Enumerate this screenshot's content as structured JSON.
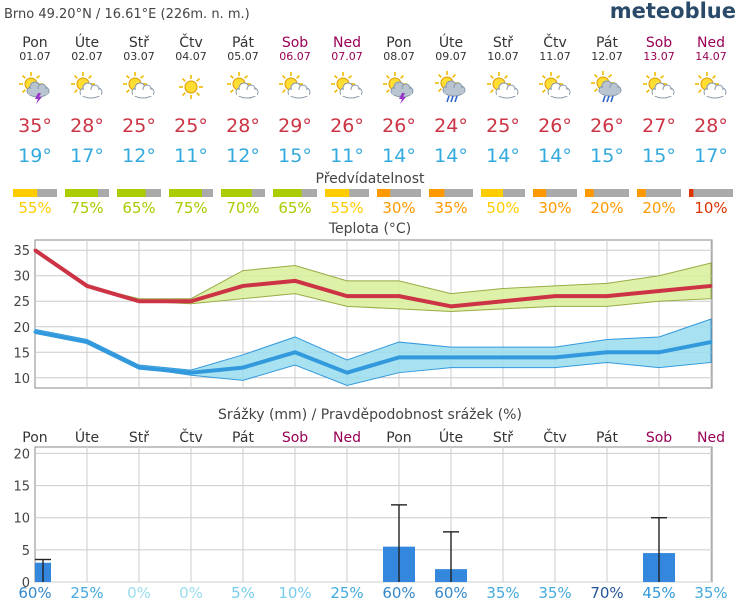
{
  "header": {
    "location": "Brno  49.20°N / 16.61°E (226m. n. m.)",
    "brand": "meteoblue"
  },
  "colors": {
    "weekday": "#333333",
    "weekend": "#990055",
    "max_temp": "#cc3344",
    "min_temp": "#33aadd",
    "max_line": "#cc3344",
    "max_band": "#d8ee99",
    "max_band_edge": "#99aa44",
    "min_line": "#3399dd",
    "min_band": "#99ddee",
    "min_band_edge": "#3399dd",
    "precip_bar": "#3388dd",
    "grid": "#888888"
  },
  "days": [
    {
      "name": "Pon",
      "date": "01.07",
      "weekend": false,
      "icon": "sun-thunder-icon",
      "tmax": "35°",
      "tmin": "19°",
      "pred": "55%",
      "pred_color": "#ffcc00",
      "pred_level": 0.55
    },
    {
      "name": "Úte",
      "date": "02.07",
      "weekend": false,
      "icon": "sun-cloud-icon",
      "tmax": "28°",
      "tmin": "17°",
      "pred": "75%",
      "pred_color": "#aacc00",
      "pred_level": 0.75
    },
    {
      "name": "Stř",
      "date": "03.07",
      "weekend": false,
      "icon": "sun-cloud-icon",
      "tmax": "25°",
      "tmin": "12°",
      "pred": "65%",
      "pred_color": "#aacc00",
      "pred_level": 0.65
    },
    {
      "name": "Čtv",
      "date": "04.07",
      "weekend": false,
      "icon": "sun-icon",
      "tmax": "25°",
      "tmin": "11°",
      "pred": "75%",
      "pred_color": "#aacc00",
      "pred_level": 0.75
    },
    {
      "name": "Pát",
      "date": "05.07",
      "weekend": false,
      "icon": "sun-cloud-icon",
      "tmax": "28°",
      "tmin": "12°",
      "pred": "70%",
      "pred_color": "#aacc00",
      "pred_level": 0.7
    },
    {
      "name": "Sob",
      "date": "06.07",
      "weekend": true,
      "icon": "sun-cloud-icon",
      "tmax": "29°",
      "tmin": "15°",
      "pred": "65%",
      "pred_color": "#aacc00",
      "pred_level": 0.65
    },
    {
      "name": "Ned",
      "date": "07.07",
      "weekend": true,
      "icon": "sun-cloud-icon",
      "tmax": "26°",
      "tmin": "11°",
      "pred": "55%",
      "pred_color": "#ffcc00",
      "pred_level": 0.55
    },
    {
      "name": "Pon",
      "date": "08.07",
      "weekend": false,
      "icon": "sun-thunder-icon",
      "tmax": "26°",
      "tmin": "14°",
      "pred": "30%",
      "pred_color": "#ff9900",
      "pred_level": 0.3
    },
    {
      "name": "Úte",
      "date": "09.07",
      "weekend": false,
      "icon": "sun-cloud-rain-icon",
      "tmax": "24°",
      "tmin": "14°",
      "pred": "35%",
      "pred_color": "#ff9900",
      "pred_level": 0.35
    },
    {
      "name": "Stř",
      "date": "10.07",
      "weekend": false,
      "icon": "sun-cloud-icon",
      "tmax": "25°",
      "tmin": "14°",
      "pred": "50%",
      "pred_color": "#ffcc00",
      "pred_level": 0.5
    },
    {
      "name": "Čtv",
      "date": "11.07",
      "weekend": false,
      "icon": "sun-cloud-icon",
      "tmax": "26°",
      "tmin": "14°",
      "pred": "30%",
      "pred_color": "#ff9900",
      "pred_level": 0.3
    },
    {
      "name": "Pát",
      "date": "12.07",
      "weekend": false,
      "icon": "sun-cloud-rain-icon",
      "tmax": "26°",
      "tmin": "15°",
      "pred": "20%",
      "pred_color": "#ff9900",
      "pred_level": 0.2
    },
    {
      "name": "Sob",
      "date": "13.07",
      "weekend": true,
      "icon": "sun-cloud-icon",
      "tmax": "27°",
      "tmin": "15°",
      "pred": "20%",
      "pred_color": "#ff9900",
      "pred_level": 0.2
    },
    {
      "name": "Ned",
      "date": "14.07",
      "weekend": true,
      "icon": "sun-cloud-icon",
      "tmax": "28°",
      "tmin": "17°",
      "pred": "10%",
      "pred_color": "#dd3300",
      "pred_level": 0.1
    }
  ],
  "predictability_title": "Předvídatelnost",
  "chart_data": [
    {
      "type": "line",
      "title": "Teplota (°C)",
      "ylim": [
        8,
        37
      ],
      "yticks": [
        10,
        15,
        20,
        25,
        30,
        35
      ],
      "grid": true,
      "series": [
        {
          "values": [
            35,
            28,
            25,
            25,
            28,
            29,
            26,
            26,
            24,
            25,
            26,
            26,
            27,
            28
          ]
        },
        {
          "values": [
            19,
            17,
            12,
            11,
            12,
            15,
            11,
            14,
            14,
            14,
            14,
            15,
            15,
            17
          ]
        }
      ],
      "max_band_high": [
        35,
        28,
        25.5,
        25.5,
        31,
        32,
        29,
        29,
        26.5,
        27.5,
        28,
        28.5,
        30,
        32.5
      ],
      "max_band_low": [
        35,
        28,
        25,
        24.5,
        25.5,
        26.5,
        24,
        23.5,
        23,
        23.5,
        24,
        24,
        25,
        25.5
      ],
      "min_band_high": [
        19.5,
        17.5,
        12.5,
        11.5,
        14.5,
        18,
        13.5,
        17,
        16,
        16,
        16,
        17.5,
        18,
        21.5
      ],
      "min_band_low": [
        19,
        17,
        12,
        10.5,
        9.5,
        12.5,
        8.5,
        11,
        12,
        12,
        12,
        13,
        12,
        13
      ]
    },
    {
      "type": "bar",
      "title": "Srážky (mm) / Pravděpodobnost srážek (%)",
      "ylim": [
        0,
        21
      ],
      "yticks": [
        0,
        5,
        10,
        15,
        20
      ],
      "grid": true,
      "values": [
        3,
        0,
        0,
        0,
        0,
        0,
        0,
        5.5,
        2,
        0,
        0,
        0,
        4.5,
        0
      ],
      "error_high": [
        3.5,
        0,
        0,
        0,
        0,
        0,
        0,
        12,
        7.8,
        0,
        0,
        0,
        10,
        0
      ],
      "probability": [
        "60%",
        "25%",
        "0%",
        "0%",
        "5%",
        "10%",
        "25%",
        "60%",
        "60%",
        "35%",
        "35%",
        "70%",
        "45%",
        "35%"
      ],
      "probability_colors": [
        "#3388cc",
        "#44aadd",
        "#99ddee",
        "#99ddee",
        "#77ccee",
        "#77ccee",
        "#44aadd",
        "#3388cc",
        "#3388cc",
        "#44aadd",
        "#44aadd",
        "#225599",
        "#3399dd",
        "#44aadd"
      ]
    }
  ]
}
